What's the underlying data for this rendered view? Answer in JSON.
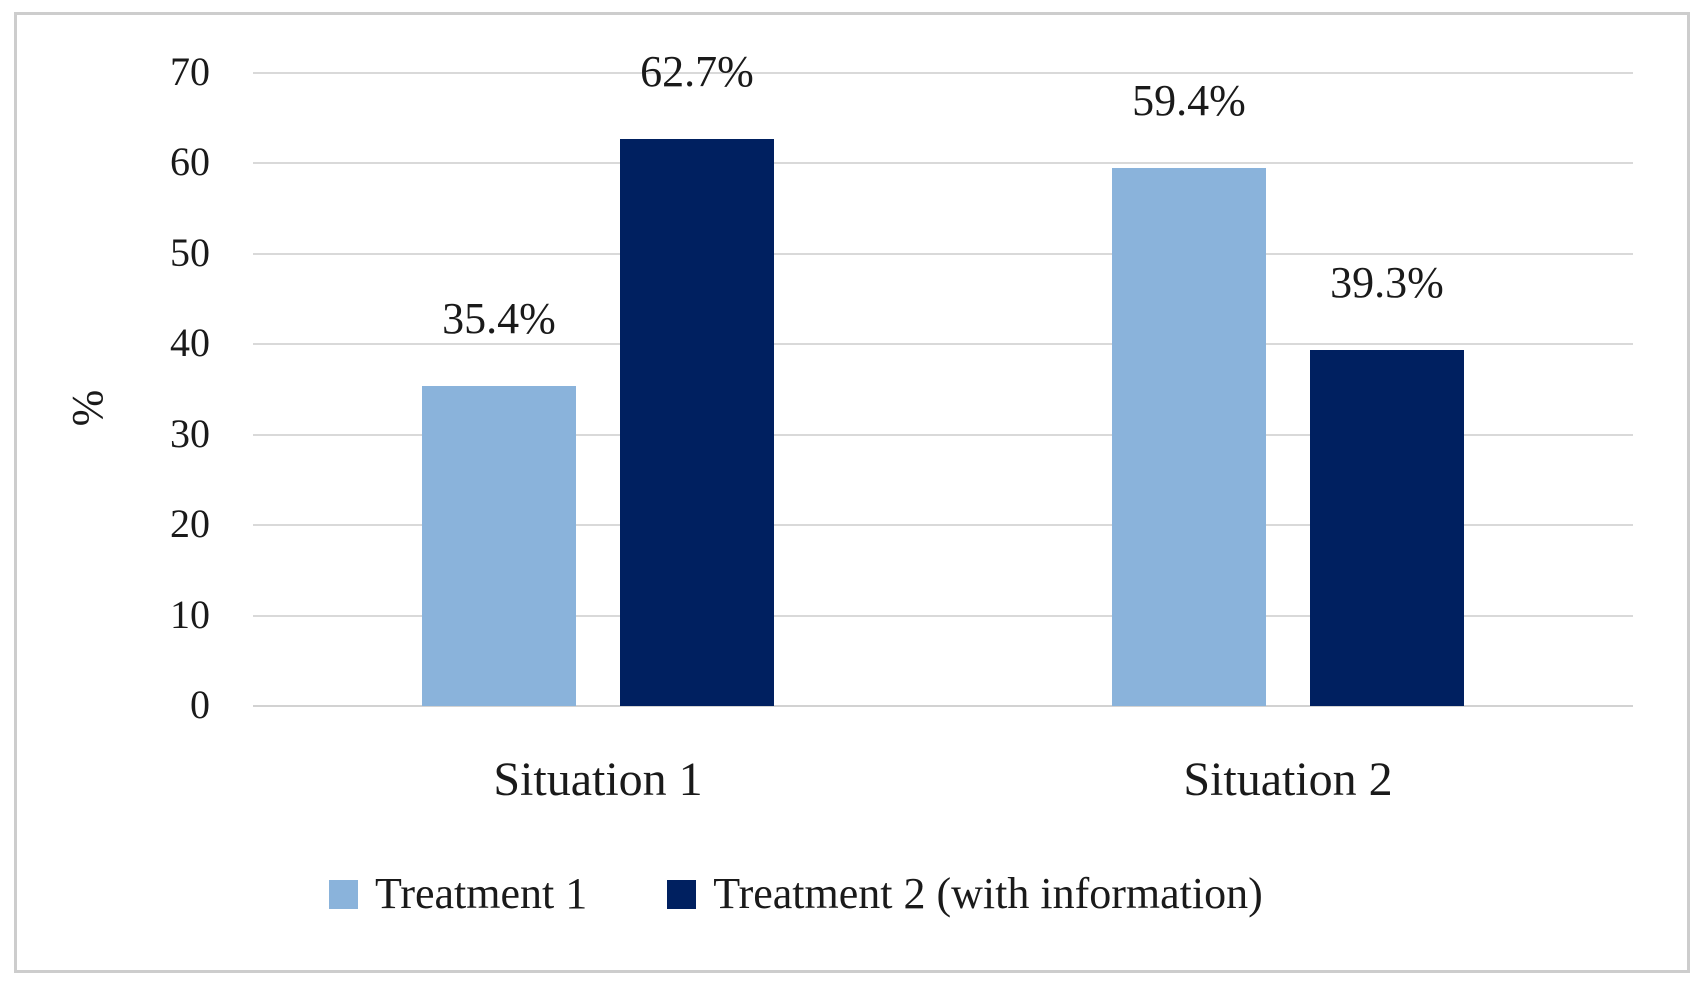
{
  "figure": {
    "background": "#ffffff",
    "border_color": "#cdcdcd"
  },
  "chart_data": {
    "type": "bar",
    "title": "",
    "xlabel": "",
    "ylabel": "%",
    "categories": [
      "Situation 1",
      "Situation 2"
    ],
    "series": [
      {
        "name": "Treatment 1",
        "color": "#8ab3db",
        "values": [
          35.4,
          59.4
        ],
        "labels": [
          "35.4%",
          "59.4%"
        ]
      },
      {
        "name": "Treatment 2 (with information)",
        "color": "#002060",
        "values": [
          62.7,
          39.3
        ],
        "labels": [
          "62.7%",
          "39.3%"
        ]
      }
    ],
    "yticks": [
      0,
      10,
      20,
      30,
      40,
      50,
      60,
      70
    ],
    "ylim": [
      0,
      70
    ],
    "grid": true,
    "gridline_color": "#d9d9d9",
    "axis_line_color": "#d2d2d2",
    "text_color": "#1a1a1a",
    "legend_position": "bottom"
  }
}
